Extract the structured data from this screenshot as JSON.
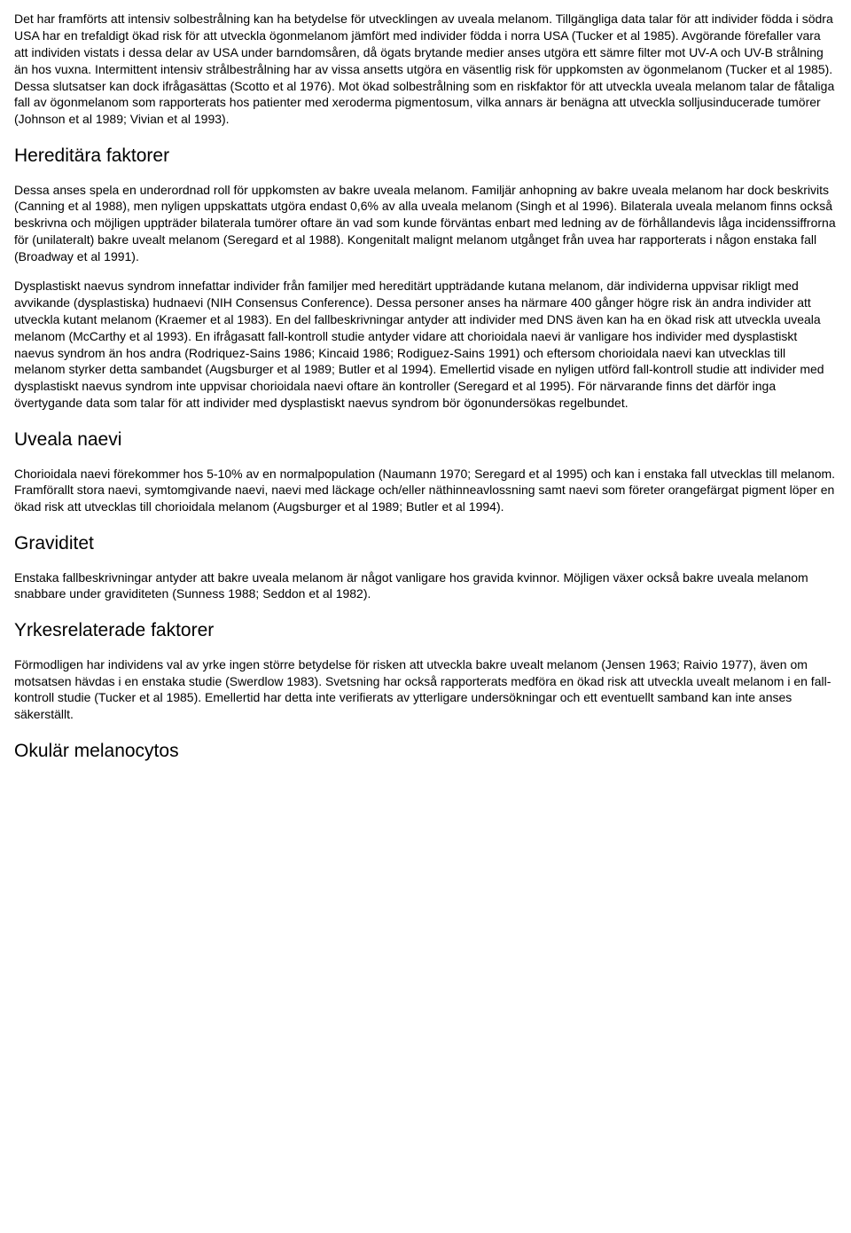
{
  "paragraphs": {
    "p1": "Det har framförts att intensiv solbestrålning kan ha betydelse för utvecklingen av uveala melanom. Tillgängliga data talar för att individer födda i södra USA har en trefaldigt ökad risk för att utveckla ögonmelanom jämfört med individer födda i norra USA (Tucker et al 1985). Avgörande förefaller vara att individen vistats i dessa delar av USA under barndomsåren, då ögats brytande medier anses utgöra ett sämre filter mot UV-A och UV-B strålning än hos vuxna. Intermittent intensiv strålbestrålning har av vissa ansetts utgöra en väsentlig risk för uppkomsten av ögonmelanom (Tucker et al 1985). Dessa slutsatser kan dock ifrågasättas (Scotto et al 1976). Mot ökad solbestrålning som en riskfaktor för att utveckla uveala melanom talar de fåtaliga fall av ögonmelanom som rapporterats hos patienter med xeroderma pigmentosum, vilka annars är benägna att utveckla solljusinducerade tumörer (Johnson et al 1989; Vivian et al 1993).",
    "h1": "Hereditära faktorer",
    "p2": "Dessa anses spela en underordnad roll för uppkomsten av bakre uveala melanom. Familjär anhopning av bakre uveala melanom har dock beskrivits (Canning et al 1988), men nyligen uppskattats utgöra endast 0,6% av alla uveala melanom (Singh et al 1996). Bilaterala uveala melanom finns också beskrivna och möjligen uppträder bilaterala tumörer oftare än vad som kunde förväntas enbart med ledning av de förhållandevis låga incidenssiffrorna för (unilateralt) bakre uvealt melanom (Seregard et al 1988). Kongenitalt malignt melanom utgånget från uvea har rapporterats i någon enstaka fall (Broadway et al 1991).",
    "p3": "Dysplastiskt naevus syndrom innefattar individer från familjer med hereditärt uppträdande kutana melanom, där individerna uppvisar rikligt med avvikande (dysplastiska) hudnaevi (NIH Consensus Conference). Dessa personer anses ha närmare 400 gånger högre risk än andra individer att utveckla kutant melanom (Kraemer et al 1983). En del fallbeskrivningar antyder att individer med DNS även kan ha en ökad risk att utveckla uveala melanom (McCarthy et al 1993). En ifrågasatt fall-kontroll studie antyder vidare att chorioidala naevi är vanligare hos individer med dysplastiskt naevus syndrom än hos andra (Rodriquez-Sains 1986; Kincaid 1986; Rodiguez-Sains 1991) och eftersom chorioidala naevi kan utvecklas till melanom styrker detta sambandet (Augsburger et al 1989; Butler et al 1994). Emellertid visade en nyligen utförd fall-kontroll studie att individer med dysplastiskt naevus syndrom inte uppvisar chorioidala naevi oftare än kontroller (Seregard et al 1995). För närvarande finns det därför inga övertygande data som talar för att individer med dysplastiskt naevus syndrom bör ögonundersökas regelbundet.",
    "h2": "Uveala naevi",
    "p4": "Chorioidala naevi förekommer hos 5-10% av en normalpopulation (Naumann 1970; Seregard et al 1995) och kan i enstaka fall utvecklas till melanom. Framförallt stora naevi, symtomgivande naevi, naevi med läckage och/eller näthinneavlossning samt naevi som företer orangefärgat pigment löper en ökad risk att utvecklas till chorioidala melanom (Augsburger et al 1989; Butler et al 1994).",
    "h3": "Graviditet",
    "p5": "Enstaka fallbeskrivningar antyder att bakre uveala melanom är något vanligare hos gravida kvinnor. Möjligen växer också bakre uveala melanom snabbare under graviditeten (Sunness 1988; Seddon et al 1982).",
    "h4": "Yrkesrelaterade faktorer",
    "p6": "Förmodligen har individens val av yrke ingen större betydelse för risken att utveckla bakre uvealt melanom (Jensen 1963; Raivio 1977), även om motsatsen hävdas i en enstaka studie (Swerdlow 1983). Svetsning har också rapporterats medföra en ökad risk att utveckla uvealt melanom i en fall-kontroll studie (Tucker et al 1985). Emellertid har detta inte verifierats av ytterligare undersökningar och ett eventuellt samband kan inte anses säkerställt.",
    "h5": "Okulär melanocytos"
  }
}
